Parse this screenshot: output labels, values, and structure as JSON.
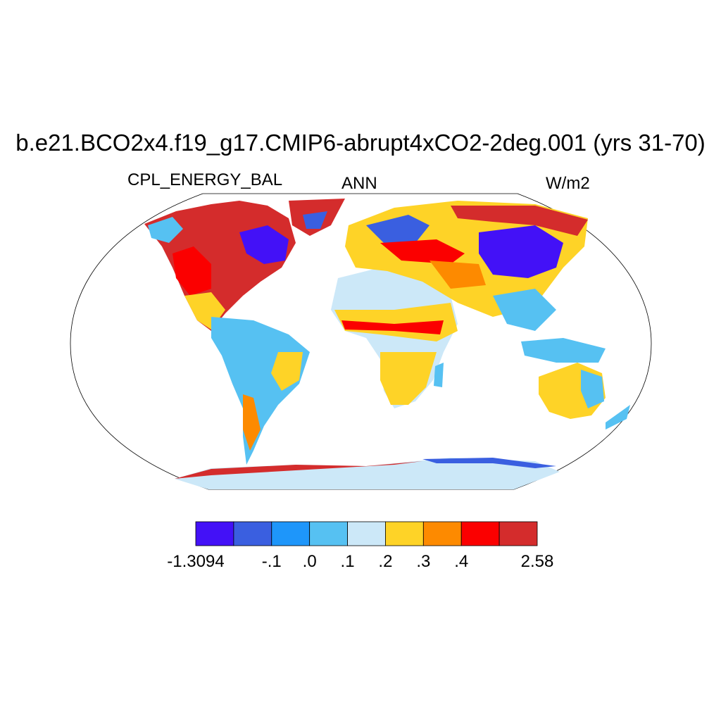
{
  "title": "b.e21.BCO2x4.f19_g17.CMIP6-abrupt4xCO2-2deg.001 (yrs 31-70)",
  "left_label": "CPL_ENERGY_BAL",
  "center_label": "ANN",
  "right_label": "W/m2",
  "colorbar": {
    "colors": [
      "#4311f7",
      "#3a5fe0",
      "#1e96fa",
      "#56c1f2",
      "#cce8f8",
      "#fed327",
      "#fd8a00",
      "#fb0000",
      "#d42c2c"
    ],
    "labels": [
      "-1.3094",
      "-.1",
      ".0",
      ".1",
      ".2",
      ".3",
      ".4",
      "2.58"
    ]
  },
  "map": {
    "projection": "Robinson",
    "land_fill_legend_classes": [
      "light-blue",
      "yellow",
      "orange",
      "red",
      "dark-red",
      "blue",
      "purple"
    ]
  }
}
